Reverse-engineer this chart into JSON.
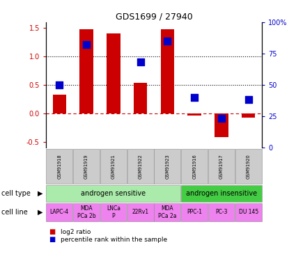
{
  "title": "GDS1699 / 27940",
  "samples": [
    "GSM91918",
    "GSM91919",
    "GSM91921",
    "GSM91922",
    "GSM91923",
    "GSM91916",
    "GSM91917",
    "GSM91920"
  ],
  "log2_ratio": [
    0.33,
    1.48,
    1.4,
    0.54,
    1.48,
    -0.04,
    -0.42,
    -0.08
  ],
  "percentile_rank_pct": [
    50,
    82,
    null,
    68,
    85,
    40,
    23,
    38
  ],
  "cell_type_groups": [
    {
      "label": "androgen sensitive",
      "start": 0,
      "end": 5,
      "color": "#aaeaaa"
    },
    {
      "label": "androgen insensitive",
      "start": 5,
      "end": 8,
      "color": "#44cc44"
    }
  ],
  "cell_lines": [
    {
      "label": "LAPC-4",
      "col": 0
    },
    {
      "label": "MDA\nPCa 2b",
      "col": 1
    },
    {
      "label": "LNCa\nP",
      "col": 2
    },
    {
      "label": "22Rv1",
      "col": 3
    },
    {
      "label": "MDA\nPCa 2a",
      "col": 4
    },
    {
      "label": "PPC-1",
      "col": 5
    },
    {
      "label": "PC-3",
      "col": 6
    },
    {
      "label": "DU 145",
      "col": 7
    }
  ],
  "cell_line_color": "#ee82ee",
  "bar_color": "#cc0000",
  "dot_color": "#0000cc",
  "ylim_left": [
    -0.6,
    1.6
  ],
  "ylim_right": [
    0,
    100
  ],
  "yticks_left": [
    -0.5,
    0.0,
    0.5,
    1.0,
    1.5
  ],
  "yticks_right": [
    0,
    25,
    50,
    75,
    100
  ],
  "hlines": [
    0.5,
    1.0
  ],
  "hline_zero_color": "#cc0000",
  "hline_dotted_color": "#000000",
  "sample_bg_color": "#cccccc",
  "legend_log2_label": "log2 ratio",
  "legend_pct_label": "percentile rank within the sample",
  "bar_width": 0.5,
  "dot_size": 50
}
